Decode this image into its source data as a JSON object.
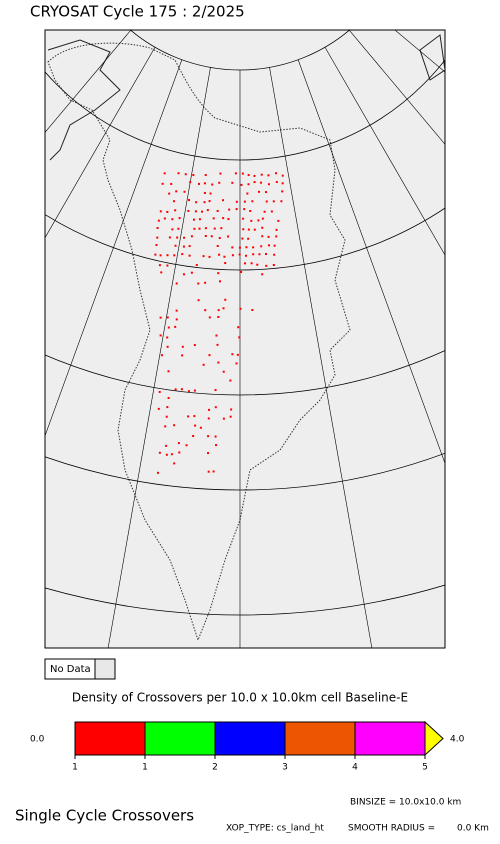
{
  "header": {
    "title": "CRYOSAT Cycle 175 : 2/2025"
  },
  "legend": {
    "no_data": "No Data"
  },
  "colorbar": {
    "title": "Density of Crossovers per  10.0 x  10.0km cell Baseline-E",
    "min_label": "0.0",
    "max_label": "4.0",
    "ticks": [
      "1",
      "1",
      "2",
      "3",
      "4",
      "5"
    ],
    "colors": [
      "#ff0000",
      "#00ff00",
      "#0000ff",
      "#ee5500",
      "#ff00ff"
    ],
    "overflow_color": "#ffff00"
  },
  "footer": {
    "title": "Single Cycle Crossovers",
    "binsize": "BINSIZE = 10.0x10.0 km",
    "xop_type": "XOP_TYPE: cs_land_ht",
    "smooth_label": "SMOOTH RADIUS =",
    "smooth_value": "0.0 Km"
  }
}
